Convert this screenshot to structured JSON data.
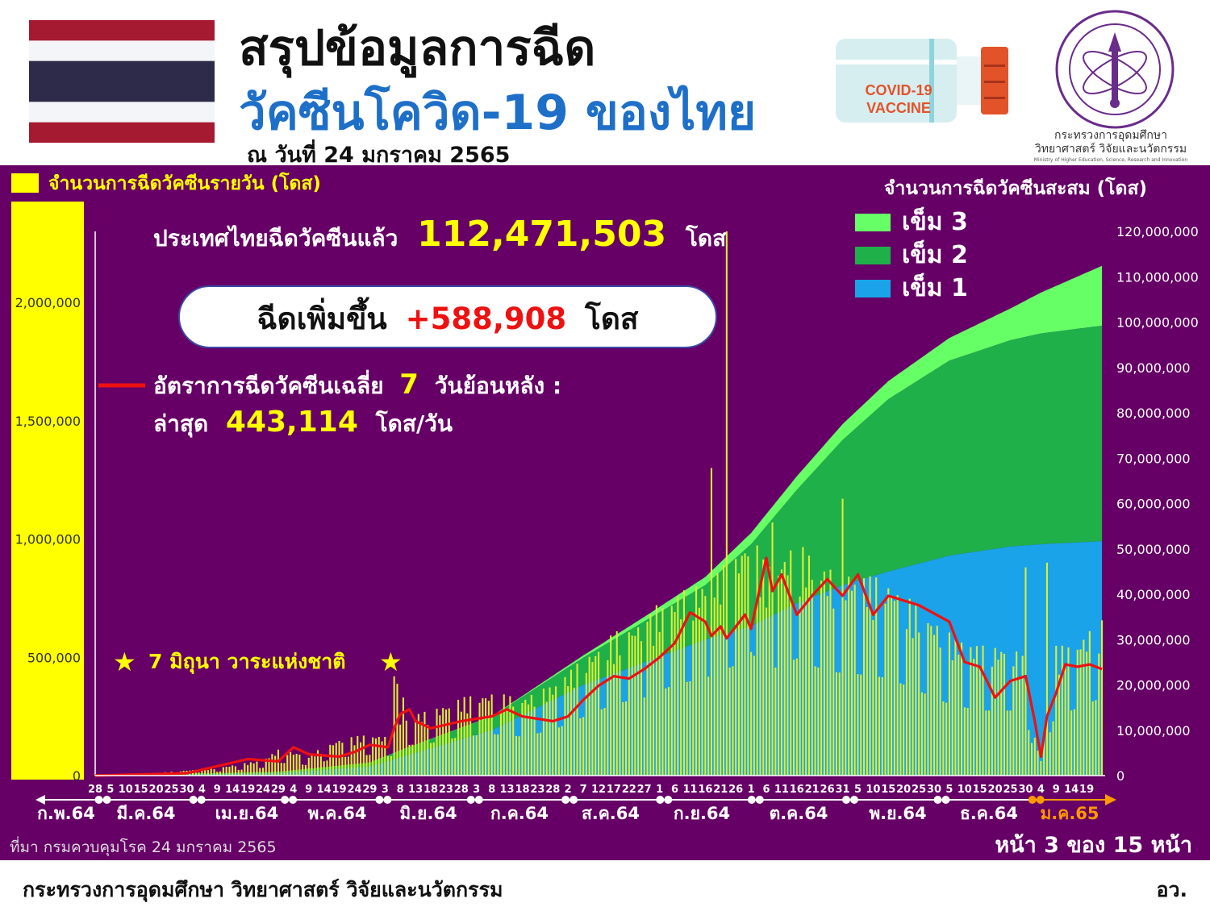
{
  "header": {
    "title_line1": "สรุปข้อมูลการฉีด",
    "title_line2": "วัคซีนโควิด-19 ของไทย",
    "date": "ณ วันที่ 24 มกราคม 2565",
    "vaccine_label_1": "COVID-19",
    "vaccine_label_2": "VACCINE",
    "ministry_th_1": "กระทรวงการอุดมศึกษา",
    "ministry_th_2": "วิทยาศาสตร์ วิจัยและนวัตกรรม",
    "ministry_en": "Ministry of Higher Education, Science, Research and Innovation"
  },
  "summary": {
    "total_prefix": "ประเทศไทยฉีดวัคซีนแล้ว",
    "total_value": "112,471,503",
    "total_unit": "โดส",
    "increase_prefix": "ฉีดเพิ่มขึ้น",
    "increase_value": "+588,908",
    "increase_unit": "โดส",
    "avg_label": "อัตราการฉีดวัคซีนเฉลี่ย",
    "avg_days": "7",
    "avg_suffix": "วันย้อนหลัง :",
    "latest_label": "ล่าสุด",
    "latest_value": "443,114",
    "latest_unit": "โดส/วัน",
    "annotation": "7 มิถุนา วาระแห่งชาติ"
  },
  "footer": {
    "source": "ที่มา กรมควบคุมโรค 24 มกราคม 2565",
    "page": "หน้า 3 ของ 15 หน้า",
    "ministry": "กระทรวงการอุดมศึกษา วิทยาศาสตร์ วิจัยและนวัตกรรม",
    "abbr": "อว."
  },
  "colors": {
    "panel": "#660066",
    "daily_bar": "#ddee33",
    "dose1": "#1aa3e8",
    "dose2": "#1fb04a",
    "dose3": "#66ff66",
    "avg_line": "#ee1111",
    "highlight": "#ffff00"
  },
  "chart_data": {
    "type": "bar+area+line",
    "left_axis_title": "จำนวนการฉีดวัคซีนรายวัน (โดส)",
    "right_axis_title": "จำนวนการฉีดวัคซีนสะสม (โดส)",
    "left_ticks": [
      "0",
      "500,000",
      "1,000,000",
      "1,500,000",
      "2,000,000"
    ],
    "left_ylim": [
      0,
      2300000
    ],
    "right_ticks": [
      "0",
      "10,000,000",
      "20,000,000",
      "30,000,000",
      "40,000,000",
      "50,000,000",
      "60,000,000",
      "70,000,000",
      "80,000,000",
      "90,000,000",
      "100,000,000",
      "110,000,000",
      "120,000,000"
    ],
    "right_ylim": [
      0,
      120000000
    ],
    "legend": [
      "เข็ม 3",
      "เข็ม 2",
      "เข็ม 1"
    ],
    "legend_position": "top-right",
    "months": [
      "ก.พ.64",
      "มี.ค.64",
      "เม.ย.64",
      "พ.ค.64",
      "มิ.ย.64",
      "ก.ค.64",
      "ส.ค.64",
      "ก.ย.64",
      "ต.ค.64",
      "พ.ย.64",
      "ธ.ค.64",
      "ม.ค.65"
    ],
    "day_ticks": [
      {
        "label": "28",
        "day": 0
      },
      {
        "label": "5",
        "day": 5
      },
      {
        "label": "10",
        "day": 10
      },
      {
        "label": "15",
        "day": 15
      },
      {
        "label": "20",
        "day": 20
      },
      {
        "label": "25",
        "day": 25
      },
      {
        "label": "30",
        "day": 30
      },
      {
        "label": "4",
        "day": 35
      },
      {
        "label": "9",
        "day": 40
      },
      {
        "label": "14",
        "day": 45
      },
      {
        "label": "19",
        "day": 50
      },
      {
        "label": "24",
        "day": 55
      },
      {
        "label": "29",
        "day": 60
      },
      {
        "label": "4",
        "day": 65
      },
      {
        "label": "9",
        "day": 70
      },
      {
        "label": "14",
        "day": 75
      },
      {
        "label": "19",
        "day": 80
      },
      {
        "label": "24",
        "day": 85
      },
      {
        "label": "29",
        "day": 90
      },
      {
        "label": "3",
        "day": 95
      },
      {
        "label": "8",
        "day": 100
      },
      {
        "label": "13",
        "day": 105
      },
      {
        "label": "18",
        "day": 110
      },
      {
        "label": "23",
        "day": 115
      },
      {
        "label": "28",
        "day": 120
      },
      {
        "label": "3",
        "day": 125
      },
      {
        "label": "8",
        "day": 130
      },
      {
        "label": "13",
        "day": 135
      },
      {
        "label": "18",
        "day": 140
      },
      {
        "label": "23",
        "day": 145
      },
      {
        "label": "28",
        "day": 150
      },
      {
        "label": "2",
        "day": 155
      },
      {
        "label": "7",
        "day": 160
      },
      {
        "label": "12",
        "day": 165
      },
      {
        "label": "17",
        "day": 170
      },
      {
        "label": "22",
        "day": 175
      },
      {
        "label": "27",
        "day": 180
      },
      {
        "label": "1",
        "day": 185
      },
      {
        "label": "6",
        "day": 190
      },
      {
        "label": "11",
        "day": 195
      },
      {
        "label": "16",
        "day": 200
      },
      {
        "label": "21",
        "day": 205
      },
      {
        "label": "26",
        "day": 210
      },
      {
        "label": "1",
        "day": 215
      },
      {
        "label": "6",
        "day": 220
      },
      {
        "label": "11",
        "day": 225
      },
      {
        "label": "16",
        "day": 230
      },
      {
        "label": "21",
        "day": 235
      },
      {
        "label": "26",
        "day": 240
      },
      {
        "label": "31",
        "day": 245
      },
      {
        "label": "5",
        "day": 250
      },
      {
        "label": "10",
        "day": 255
      },
      {
        "label": "15",
        "day": 260
      },
      {
        "label": "20",
        "day": 265
      },
      {
        "label": "25",
        "day": 270
      },
      {
        "label": "30",
        "day": 275
      },
      {
        "label": "5",
        "day": 280
      },
      {
        "label": "10",
        "day": 285
      },
      {
        "label": "15",
        "day": 290
      },
      {
        "label": "20",
        "day": 295
      },
      {
        "label": "25",
        "day": 300
      },
      {
        "label": "30",
        "day": 305
      },
      {
        "label": "4",
        "day": 310
      },
      {
        "label": "9",
        "day": 315
      },
      {
        "label": "14",
        "day": 320
      },
      {
        "label": "19",
        "day": 325
      }
    ],
    "day_range": [
      0,
      330
    ],
    "daily_doses": {
      "points": [
        [
          0,
          3000
        ],
        [
          20,
          10000
        ],
        [
          40,
          30000
        ],
        [
          55,
          60000
        ],
        [
          60,
          100000
        ],
        [
          70,
          80000
        ],
        [
          80,
          140000
        ],
        [
          90,
          160000
        ],
        [
          95,
          150000
        ],
        [
          97,
          150000
        ],
        [
          98,
          480000
        ],
        [
          100,
          230000
        ],
        [
          110,
          250000
        ],
        [
          120,
          300000
        ],
        [
          130,
          320000
        ],
        [
          140,
          300000
        ],
        [
          150,
          350000
        ],
        [
          160,
          450000
        ],
        [
          170,
          550000
        ],
        [
          180,
          600000
        ],
        [
          190,
          700000
        ],
        [
          200,
          750000
        ],
        [
          210,
          850000
        ],
        [
          215,
          950000
        ],
        [
          220,
          800000
        ],
        [
          230,
          900000
        ],
        [
          240,
          800000
        ],
        [
          250,
          780000
        ],
        [
          260,
          750000
        ],
        [
          270,
          650000
        ],
        [
          280,
          550000
        ],
        [
          290,
          500000
        ],
        [
          300,
          500000
        ],
        [
          305,
          450000
        ],
        [
          308,
          150000
        ],
        [
          310,
          60000
        ],
        [
          312,
          250000
        ],
        [
          315,
          500000
        ],
        [
          320,
          500000
        ],
        [
          325,
          550000
        ],
        [
          330,
          600000
        ]
      ],
      "spikes": [
        [
          101,
          330000
        ],
        [
          181,
          650000
        ],
        [
          184,
          720000
        ],
        [
          202,
          1300000
        ],
        [
          207,
          2300000
        ],
        [
          222,
          1070000
        ],
        [
          245,
          1170000
        ],
        [
          305,
          880000
        ],
        [
          312,
          900000
        ]
      ]
    },
    "avg_7day": [
      [
        0,
        0
      ],
      [
        30,
        10000
      ],
      [
        40,
        40000
      ],
      [
        50,
        70000
      ],
      [
        60,
        60000
      ],
      [
        65,
        120000
      ],
      [
        70,
        90000
      ],
      [
        80,
        80000
      ],
      [
        85,
        100000
      ],
      [
        90,
        130000
      ],
      [
        96,
        120000
      ],
      [
        98,
        200000
      ],
      [
        100,
        260000
      ],
      [
        103,
        280000
      ],
      [
        105,
        230000
      ],
      [
        110,
        200000
      ],
      [
        120,
        230000
      ],
      [
        130,
        250000
      ],
      [
        135,
        280000
      ],
      [
        140,
        250000
      ],
      [
        150,
        230000
      ],
      [
        155,
        250000
      ],
      [
        160,
        320000
      ],
      [
        165,
        380000
      ],
      [
        170,
        420000
      ],
      [
        175,
        410000
      ],
      [
        180,
        450000
      ],
      [
        185,
        500000
      ],
      [
        190,
        560000
      ],
      [
        195,
        690000
      ],
      [
        200,
        650000
      ],
      [
        202,
        590000
      ],
      [
        205,
        630000
      ],
      [
        207,
        580000
      ],
      [
        210,
        630000
      ],
      [
        213,
        680000
      ],
      [
        215,
        620000
      ],
      [
        220,
        920000
      ],
      [
        222,
        780000
      ],
      [
        225,
        850000
      ],
      [
        230,
        680000
      ],
      [
        235,
        760000
      ],
      [
        240,
        830000
      ],
      [
        245,
        760000
      ],
      [
        250,
        850000
      ],
      [
        255,
        680000
      ],
      [
        260,
        760000
      ],
      [
        270,
        720000
      ],
      [
        280,
        650000
      ],
      [
        285,
        480000
      ],
      [
        290,
        460000
      ],
      [
        295,
        330000
      ],
      [
        300,
        400000
      ],
      [
        305,
        420000
      ],
      [
        308,
        230000
      ],
      [
        310,
        80000
      ],
      [
        312,
        250000
      ],
      [
        315,
        350000
      ],
      [
        318,
        470000
      ],
      [
        322,
        460000
      ],
      [
        326,
        470000
      ],
      [
        330,
        450000
      ]
    ],
    "cumulative_dose1": [
      [
        0,
        0
      ],
      [
        60,
        600000
      ],
      [
        90,
        2000000
      ],
      [
        100,
        4000000
      ],
      [
        130,
        10000000
      ],
      [
        160,
        20000000
      ],
      [
        180,
        25000000
      ],
      [
        200,
        30000000
      ],
      [
        215,
        33000000
      ],
      [
        230,
        38000000
      ],
      [
        245,
        42000000
      ],
      [
        260,
        45000000
      ],
      [
        280,
        48500000
      ],
      [
        300,
        50500000
      ],
      [
        310,
        51000000
      ],
      [
        330,
        51700000
      ]
    ],
    "cumulative_dose2": [
      [
        0,
        0
      ],
      [
        60,
        200000
      ],
      [
        90,
        800000
      ],
      [
        100,
        1500000
      ],
      [
        130,
        3000000
      ],
      [
        160,
        6000000
      ],
      [
        180,
        9000000
      ],
      [
        200,
        12000000
      ],
      [
        215,
        18000000
      ],
      [
        230,
        25000000
      ],
      [
        245,
        32000000
      ],
      [
        260,
        38000000
      ],
      [
        280,
        43000000
      ],
      [
        300,
        45500000
      ],
      [
        310,
        46500000
      ],
      [
        330,
        47500000
      ]
    ],
    "cumulative_dose3": [
      [
        0,
        0
      ],
      [
        130,
        100000
      ],
      [
        160,
        500000
      ],
      [
        180,
        1000000
      ],
      [
        200,
        1800000
      ],
      [
        215,
        2500000
      ],
      [
        230,
        3000000
      ],
      [
        245,
        3500000
      ],
      [
        260,
        4000000
      ],
      [
        280,
        5000000
      ],
      [
        300,
        7000000
      ],
      [
        310,
        9000000
      ],
      [
        330,
        13200000
      ]
    ]
  }
}
